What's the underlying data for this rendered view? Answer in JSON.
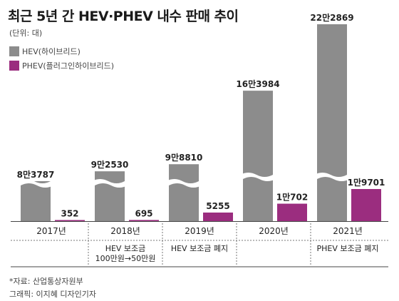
{
  "title": "최근 5년 간 HEV·PHEV 내수 판매 추이",
  "unit": "(단위: 대)",
  "legend": [
    {
      "label": "HEV(하이브리드)",
      "color": "#8c8c8c"
    },
    {
      "label": "PHEV(플러그인하이브리드)",
      "color": "#9b2d7f"
    }
  ],
  "chart_data": {
    "type": "bar",
    "axis_break": true,
    "categories": [
      "2017년",
      "2018년",
      "2019년",
      "2020년",
      "2021년"
    ],
    "series": [
      {
        "name": "HEV(하이브리드)",
        "color": "#8c8c8c",
        "values": [
          83787,
          92530,
          98810,
          163984,
          222869
        ],
        "value_labels": [
          "8만3787",
          "9만2530",
          "9만8810",
          "16만3984",
          "22만2869"
        ]
      },
      {
        "name": "PHEV(플러그인하이브리드)",
        "color": "#9b2d7f",
        "values": [
          352,
          695,
          5255,
          10702,
          19701
        ],
        "value_labels": [
          "352",
          "695",
          "5255",
          "1만702",
          "1만9701"
        ]
      }
    ],
    "notes": [
      [],
      [
        "HEV 보조금",
        "100만원→50만원"
      ],
      [
        "HEV 보조금 폐지"
      ],
      [],
      [
        "PHEV 보조금 폐지"
      ]
    ]
  },
  "footer": {
    "source": "*자료: 산업통상자원부",
    "credit": "그래픽: 이지혜 디자인기자"
  }
}
